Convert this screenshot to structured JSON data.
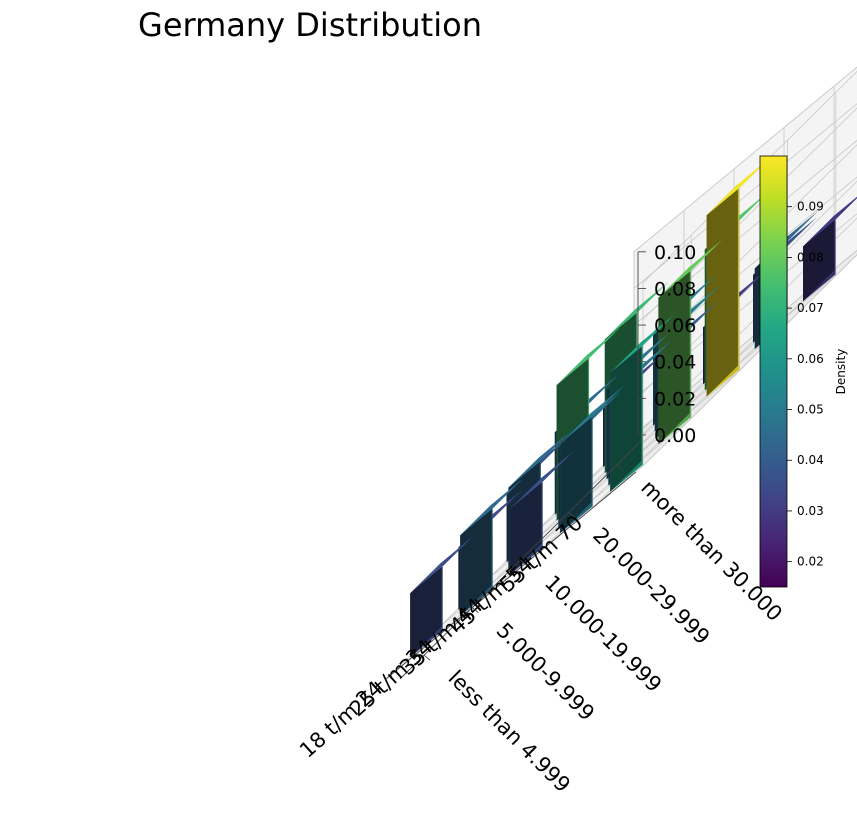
{
  "chart_data": {
    "type": "bar3d",
    "title": "Germany Distribution",
    "x_categories": [
      "18 t/m 24",
      "25 t/m 34",
      "35 t/m 44",
      "45 t/m 54",
      "55 t/m 70"
    ],
    "y_categories": [
      "less than 4.999",
      "5.000-9.999",
      "10.000-19.999",
      "20.000-29.999",
      "more than 30.000"
    ],
    "values": [
      [
        0.035,
        0.034,
        0.038,
        0.045,
        0.032
      ],
      [
        0.044,
        0.044,
        0.074,
        0.073,
        0.051
      ],
      [
        0.036,
        0.043,
        0.049,
        0.04,
        0.031
      ],
      [
        0.049,
        0.048,
        0.052,
        0.077,
        0.037
      ],
      [
        0.065,
        0.08,
        0.099,
        0.044,
        0.03
      ]
    ],
    "zlim": [
      0,
      0.1
    ],
    "z_ticks": [
      "0.00",
      "0.02",
      "0.04",
      "0.06",
      "0.08",
      "0.10"
    ],
    "colorbar": {
      "label": "Density",
      "colormap": "viridis",
      "range": [
        0.015,
        0.1
      ],
      "ticks": [
        "0.02",
        "0.03",
        "0.04",
        "0.05",
        "0.06",
        "0.07",
        "0.08",
        "0.09"
      ]
    },
    "grid": true
  }
}
